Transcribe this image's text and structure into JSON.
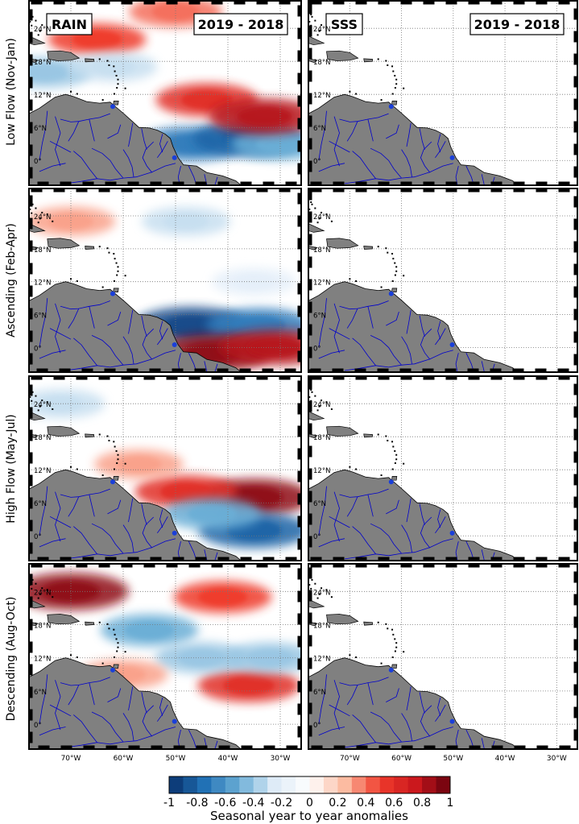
{
  "chart_data": {
    "type": "heatmap",
    "description_title": "",
    "row_labels": [
      "Low Flow (Nov-Jan)",
      "Ascending (Feb-Apr)",
      "High Flow (May-Jul)",
      "Descending (Aug-Oct)"
    ],
    "column_titles": [
      "RAIN",
      "SSS"
    ],
    "period_label": "2019 - 2018",
    "lat_ticks": [
      "0°",
      "6°N",
      "12°N",
      "18°N",
      "24°N"
    ],
    "lat_values": [
      0,
      6,
      12,
      18,
      24
    ],
    "lon_ticks": [
      "70°W",
      "60°W",
      "50°W",
      "40°W",
      "30°W"
    ],
    "lon_values": [
      -70,
      -60,
      -50,
      -40,
      -30
    ],
    "lon_range": [
      -78,
      -26
    ],
    "lat_range": [
      -4.5,
      29
    ],
    "grid": true,
    "colorbar": {
      "label": "Seasonal year to year anomalies",
      "ticks": [
        "-1",
        "-0.8",
        "-0.6",
        "-0.4",
        "-0.2",
        "0",
        "0.2",
        "0.4",
        "0.6",
        "0.8",
        "1"
      ],
      "range": [
        -1,
        1
      ],
      "colormap": "blue-white-red",
      "levels": 20,
      "colors": {
        "negative_max": "#08306b",
        "neutral": "#ffffff",
        "positive_max": "#67000d"
      }
    },
    "land_color": "#808080",
    "river_color": "#0000cc",
    "rain_anomalies": [
      {
        "season": "Low Flow (Nov-Jan)",
        "features": [
          {
            "lon": -47,
            "lat": 3,
            "value": -0.7
          },
          {
            "lon": -36,
            "lat": 4,
            "value": -0.8
          },
          {
            "lon": -30,
            "lat": 3,
            "value": -0.5
          },
          {
            "lon": -44,
            "lat": 11,
            "value": 0.6
          },
          {
            "lon": -33,
            "lat": 8,
            "value": 0.8
          },
          {
            "lon": -50,
            "lat": 27,
            "value": 0.4
          },
          {
            "lon": -65,
            "lat": 22,
            "value": 0.5
          },
          {
            "lon": -75,
            "lat": 16,
            "value": -0.4
          },
          {
            "lon": -62,
            "lat": 17,
            "value": -0.3
          }
        ]
      },
      {
        "season": "Ascending (Feb-Apr)",
        "features": [
          {
            "lon": -47,
            "lat": 4,
            "value": -0.9
          },
          {
            "lon": -34,
            "lat": 4,
            "value": -0.7
          },
          {
            "lon": -43,
            "lat": -1,
            "value": 0.9
          },
          {
            "lon": -31,
            "lat": 0,
            "value": 0.8
          },
          {
            "lon": -70,
            "lat": 23,
            "value": 0.3
          },
          {
            "lon": -48,
            "lat": 23,
            "value": -0.3
          },
          {
            "lon": -35,
            "lat": 12,
            "value": -0.2
          }
        ]
      },
      {
        "season": "High Flow (May-Jul)",
        "features": [
          {
            "lon": -35,
            "lat": 7,
            "value": 0.9
          },
          {
            "lon": -48,
            "lat": 8,
            "value": 0.6
          },
          {
            "lon": -35,
            "lat": 1,
            "value": -0.8
          },
          {
            "lon": -43,
            "lat": 4,
            "value": -0.5
          },
          {
            "lon": -72,
            "lat": 24,
            "value": -0.3
          },
          {
            "lon": -57,
            "lat": 13,
            "value": 0.3
          }
        ]
      },
      {
        "season": "Descending (Aug-Oct)",
        "features": [
          {
            "lon": -70,
            "lat": 24,
            "value": 0.9
          },
          {
            "lon": -41,
            "lat": 23,
            "value": 0.5
          },
          {
            "lon": -36,
            "lat": 7,
            "value": 0.6
          },
          {
            "lon": -55,
            "lat": 17,
            "value": -0.5
          },
          {
            "lon": -45,
            "lat": 12,
            "value": -0.4
          },
          {
            "lon": -32,
            "lat": 12,
            "value": -0.4
          },
          {
            "lon": -60,
            "lat": 9,
            "value": 0.3
          }
        ]
      }
    ],
    "sss_anomalies": "no data shown (blank panels)"
  }
}
